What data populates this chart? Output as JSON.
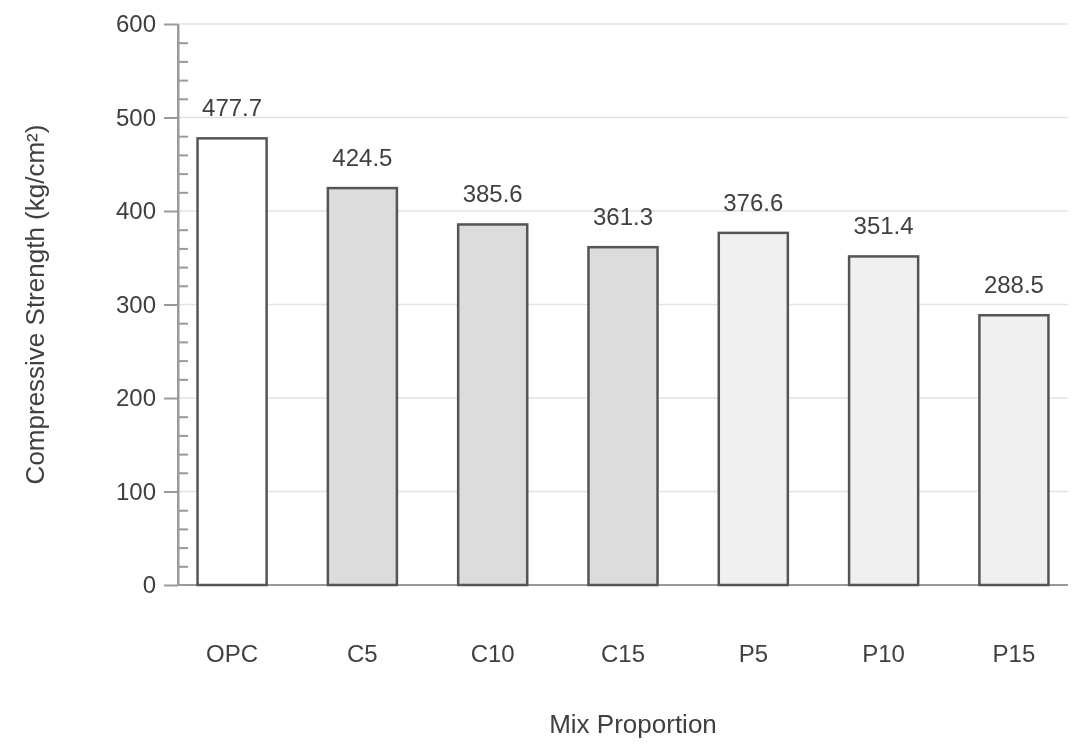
{
  "chart_data": {
    "type": "bar",
    "xlabel": "Mix Proportion",
    "ylabel": "Compressive Strength (kg/cm²)",
    "categories": [
      "OPC",
      "C5",
      "C10",
      "C15",
      "P5",
      "P10",
      "P15"
    ],
    "values": [
      477.7,
      424.5,
      385.6,
      361.3,
      376.6,
      351.4,
      288.5
    ],
    "colors": [
      "#ffffff",
      "#dcdcdc",
      "#dcdcdc",
      "#dcdcdc",
      "#f0f0f0",
      "#f0f0f0",
      "#f0f0f0"
    ],
    "ylim": [
      0,
      600
    ],
    "yticks": [
      0,
      {
        "value": 20,
        "label": null
      },
      {
        "value": 40,
        "label": null
      },
      {
        "value": 60,
        "label": null
      },
      {
        "value": 80,
        "label": null
      },
      100,
      {
        "value": 120,
        "label": null
      },
      {
        "value": 140,
        "label": null
      },
      {
        "value": 160,
        "label": null
      },
      {
        "value": 180,
        "label": null
      },
      200,
      {
        "value": 220,
        "label": null
      },
      {
        "value": 240,
        "label": null
      },
      {
        "value": 260,
        "label": null
      },
      {
        "value": 280,
        "label": null
      },
      300,
      {
        "value": 320,
        "label": null
      },
      {
        "value": 340,
        "label": null
      },
      {
        "value": 360,
        "label": null
      },
      {
        "value": 380,
        "label": null
      },
      400,
      {
        "value": 420,
        "label": null
      },
      {
        "value": 440,
        "label": null
      },
      {
        "value": 460,
        "label": null
      },
      {
        "value": 480,
        "label": null
      },
      500,
      {
        "value": 520,
        "label": null
      },
      {
        "value": 540,
        "label": null
      },
      {
        "value": 560,
        "label": null
      },
      {
        "value": 580,
        "label": null
      },
      600
    ],
    "grid": "y",
    "data_labels": true
  }
}
